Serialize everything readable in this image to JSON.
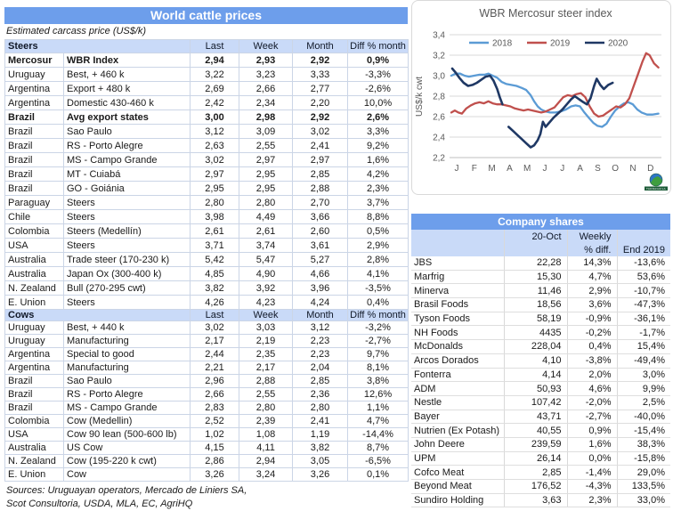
{
  "colors": {
    "header_blue": "#6D9EEB",
    "band_blue": "#C9DAF8",
    "grid": "#D9D9D9",
    "axis_line": "#BFBFBF",
    "axis_text": "#595959",
    "series_2018": "#5B9BD5",
    "series_2019": "#C0504D",
    "series_2020": "#1F3864"
  },
  "main_table": {
    "title": "World cattle prices",
    "subtitle": "Estimated carcass price (US$/k)",
    "columns": [
      "Last",
      "Week",
      "Month",
      "Diff % month"
    ],
    "sections": [
      {
        "label": "Steers",
        "rows": [
          {
            "c": "Mercosur",
            "d": "WBR Index",
            "last": "2,94",
            "week": "2,93",
            "month": "2,92",
            "diff": "0,9%",
            "bold": true
          },
          {
            "c": "Uruguay",
            "d": "Best, + 460 k",
            "last": "3,22",
            "week": "3,23",
            "month": "3,33",
            "diff": "-3,3%"
          },
          {
            "c": "Argentina",
            "d": "Export + 480 k",
            "last": "2,69",
            "week": "2,66",
            "month": "2,77",
            "diff": "-2,6%"
          },
          {
            "c": "Argentina",
            "d": "Domestic 430-460 k",
            "last": "2,42",
            "week": "2,34",
            "month": "2,20",
            "diff": "10,0%"
          },
          {
            "c": "Brazil",
            "d": "Avg export states",
            "last": "3,00",
            "week": "2,98",
            "month": "2,92",
            "diff": "2,6%",
            "bold": true
          },
          {
            "c": "Brazil",
            "d": "Sao Paulo",
            "last": "3,12",
            "week": "3,09",
            "month": "3,02",
            "diff": "3,3%"
          },
          {
            "c": "Brazil",
            "d": "RS - Porto Alegre",
            "last": "2,63",
            "week": "2,55",
            "month": "2,41",
            "diff": "9,2%"
          },
          {
            "c": "Brazil",
            "d": "MS - Campo Grande",
            "last": "3,02",
            "week": "2,97",
            "month": "2,97",
            "diff": "1,6%"
          },
          {
            "c": "Brazil",
            "d": "MT - Cuiabá",
            "last": "2,97",
            "week": "2,95",
            "month": "2,85",
            "diff": "4,2%"
          },
          {
            "c": "Brazil",
            "d": "GO - Goiánia",
            "last": "2,95",
            "week": "2,95",
            "month": "2,88",
            "diff": "2,3%"
          },
          {
            "c": "Paraguay",
            "d": "Steers",
            "last": "2,80",
            "week": "2,80",
            "month": "2,70",
            "diff": "3,7%"
          },
          {
            "c": "Chile",
            "d": "Steers",
            "last": "3,98",
            "week": "4,49",
            "month": "3,66",
            "diff": "8,8%"
          },
          {
            "c": "Colombia",
            "d": "Steers (Medellín)",
            "last": "2,61",
            "week": "2,61",
            "month": "2,60",
            "diff": "0,5%"
          },
          {
            "c": "USA",
            "d": "Steers",
            "last": "3,71",
            "week": "3,74",
            "month": "3,61",
            "diff": "2,9%"
          },
          {
            "c": "Australia",
            "d": "Trade steer (170-230 k)",
            "last": "5,42",
            "week": "5,47",
            "month": "5,27",
            "diff": "2,8%"
          },
          {
            "c": "Australia",
            "d": "Japan Ox (300-400 k)",
            "last": "4,85",
            "week": "4,90",
            "month": "4,66",
            "diff": "4,1%"
          },
          {
            "c": "N. Zealand",
            "d": "Bull (270-295 cwt)",
            "last": "3,82",
            "week": "3,92",
            "month": "3,96",
            "diff": "-3,5%"
          },
          {
            "c": "E. Union",
            "d": "Steers",
            "last": "4,26",
            "week": "4,23",
            "month": "4,24",
            "diff": "0,4%"
          }
        ]
      },
      {
        "label": "Cows",
        "rows": [
          {
            "c": "Uruguay",
            "d": "Best, + 440 k",
            "last": "3,02",
            "week": "3,03",
            "month": "3,12",
            "diff": "-3,2%"
          },
          {
            "c": "Uruguay",
            "d": "Manufacturing",
            "last": "2,17",
            "week": "2,19",
            "month": "2,23",
            "diff": "-2,7%"
          },
          {
            "c": "Argentina",
            "d": "Special to good",
            "last": "2,44",
            "week": "2,35",
            "month": "2,23",
            "diff": "9,7%"
          },
          {
            "c": "Argentina",
            "d": "Manufacturing",
            "last": "2,21",
            "week": "2,17",
            "month": "2,04",
            "diff": "8,1%"
          },
          {
            "c": "Brazil",
            "d": "Sao Paulo",
            "last": "2,96",
            "week": "2,88",
            "month": "2,85",
            "diff": "3,8%"
          },
          {
            "c": "Brazil",
            "d": "RS - Porto Alegre",
            "last": "2,66",
            "week": "2,55",
            "month": "2,36",
            "diff": "12,6%"
          },
          {
            "c": "Brazil",
            "d": "MS - Campo Grande",
            "last": "2,83",
            "week": "2,80",
            "month": "2,80",
            "diff": "1,1%"
          },
          {
            "c": "Colombia",
            "d": "Cow (Medellin)",
            "last": "2,52",
            "week": "2,39",
            "month": "2,41",
            "diff": "4,7%"
          },
          {
            "c": "USA",
            "d": "Cow 90 lean (500-600 lb)",
            "last": "1,02",
            "week": "1,08",
            "month": "1,19",
            "diff": "-14,4%"
          },
          {
            "c": "Australia",
            "d": "US Cow",
            "last": "4,15",
            "week": "4,11",
            "month": "3,82",
            "diff": "8,7%"
          },
          {
            "c": "N. Zealand",
            "d": "Cow (195-220 k cwt)",
            "last": "2,86",
            "week": "2,94",
            "month": "3,05",
            "diff": "-6,5%"
          },
          {
            "c": "E. Union",
            "d": "Cow",
            "last": "3,26",
            "week": "3,24",
            "month": "3,26",
            "diff": "0,1%"
          }
        ]
      }
    ],
    "sources": [
      "Sources: Uruguayan operators, Mercado de Liniers SA,",
      "Scot Consultoria, USDA, MLA, EC, AgriHQ"
    ]
  },
  "chart_data": {
    "type": "line",
    "title": "WBR Mercosur steer index",
    "ylabel": "US$/k cwt",
    "ylim": [
      2.2,
      3.4
    ],
    "yticks": [
      "2,2",
      "2,4",
      "2,6",
      "2,8",
      "3,0",
      "3,2",
      "3,4"
    ],
    "x_labels": [
      "J",
      "F",
      "M",
      "A",
      "M",
      "J",
      "J",
      "A",
      "S",
      "O",
      "N",
      "D"
    ],
    "legend_position": "top",
    "grid": true,
    "logo": "tardaguila-globe-logo",
    "series": [
      {
        "name": "2018",
        "color": "#5B9BD5",
        "segments": [
          [
            [
              0.1,
              3.0
            ],
            [
              0.35,
              3.02
            ],
            [
              0.6,
              3.02
            ],
            [
              0.85,
              3.0
            ],
            [
              1.1,
              2.99
            ],
            [
              1.4,
              3.0
            ],
            [
              1.7,
              3.01
            ],
            [
              2.0,
              3.01
            ],
            [
              2.2,
              3.02
            ],
            [
              2.45,
              3.0
            ],
            [
              2.7,
              2.98
            ],
            [
              2.95,
              2.94
            ],
            [
              3.2,
              2.92
            ],
            [
              3.5,
              2.91
            ],
            [
              3.8,
              2.9
            ],
            [
              4.1,
              2.88
            ],
            [
              4.35,
              2.86
            ],
            [
              4.6,
              2.81
            ],
            [
              4.8,
              2.75
            ],
            [
              5.0,
              2.7
            ],
            [
              5.2,
              2.67
            ],
            [
              5.45,
              2.65
            ],
            [
              5.7,
              2.64
            ],
            [
              6.0,
              2.64
            ],
            [
              6.3,
              2.65
            ],
            [
              6.6,
              2.67
            ],
            [
              6.9,
              2.7
            ],
            [
              7.15,
              2.71
            ],
            [
              7.4,
              2.7
            ],
            [
              7.65,
              2.64
            ],
            [
              7.9,
              2.59
            ],
            [
              8.15,
              2.54
            ],
            [
              8.4,
              2.51
            ],
            [
              8.65,
              2.5
            ],
            [
              8.9,
              2.53
            ],
            [
              9.15,
              2.6
            ],
            [
              9.4,
              2.66
            ],
            [
              9.65,
              2.7
            ],
            [
              9.9,
              2.73
            ],
            [
              10.15,
              2.74
            ],
            [
              10.4,
              2.72
            ],
            [
              10.65,
              2.67
            ],
            [
              10.9,
              2.64
            ],
            [
              11.2,
              2.62
            ],
            [
              11.5,
              2.62
            ],
            [
              11.85,
              2.63
            ]
          ]
        ]
      },
      {
        "name": "2019",
        "color": "#C0504D",
        "segments": [
          [
            [
              0.1,
              2.64
            ],
            [
              0.3,
              2.66
            ],
            [
              0.5,
              2.64
            ],
            [
              0.7,
              2.63
            ],
            [
              0.95,
              2.68
            ],
            [
              1.2,
              2.71
            ],
            [
              1.45,
              2.73
            ],
            [
              1.7,
              2.74
            ],
            [
              1.95,
              2.73
            ],
            [
              2.2,
              2.75
            ],
            [
              2.45,
              2.73
            ],
            [
              2.7,
              2.72
            ],
            [
              2.95,
              2.72
            ],
            [
              3.2,
              2.71
            ],
            [
              3.45,
              2.7
            ],
            [
              3.7,
              2.68
            ],
            [
              3.95,
              2.67
            ],
            [
              4.2,
              2.66
            ],
            [
              4.45,
              2.67
            ],
            [
              4.7,
              2.66
            ],
            [
              4.95,
              2.65
            ],
            [
              5.2,
              2.64
            ],
            [
              5.45,
              2.65
            ],
            [
              5.7,
              2.67
            ],
            [
              5.95,
              2.69
            ],
            [
              6.2,
              2.74
            ],
            [
              6.45,
              2.79
            ],
            [
              6.7,
              2.81
            ],
            [
              6.95,
              2.8
            ],
            [
              7.2,
              2.82
            ],
            [
              7.45,
              2.83
            ],
            [
              7.7,
              2.79
            ],
            [
              7.95,
              2.7
            ],
            [
              8.2,
              2.63
            ],
            [
              8.45,
              2.6
            ],
            [
              8.7,
              2.61
            ],
            [
              8.95,
              2.64
            ],
            [
              9.2,
              2.67
            ],
            [
              9.45,
              2.7
            ],
            [
              9.7,
              2.69
            ],
            [
              9.95,
              2.72
            ],
            [
              10.2,
              2.78
            ],
            [
              10.45,
              2.9
            ],
            [
              10.7,
              3.02
            ],
            [
              10.95,
              3.14
            ],
            [
              11.15,
              3.22
            ],
            [
              11.35,
              3.2
            ],
            [
              11.6,
              3.12
            ],
            [
              11.85,
              3.08
            ]
          ]
        ]
      },
      {
        "name": "2020",
        "color": "#1F3864",
        "segments": [
          [
            [
              0.15,
              3.07
            ],
            [
              0.35,
              3.03
            ],
            [
              0.55,
              2.98
            ],
            [
              0.8,
              2.93
            ],
            [
              1.05,
              2.9
            ],
            [
              1.3,
              2.91
            ],
            [
              1.55,
              2.93
            ],
            [
              1.8,
              2.96
            ],
            [
              2.05,
              2.99
            ],
            [
              2.3,
              3.0
            ],
            [
              2.5,
              2.95
            ],
            [
              2.7,
              2.87
            ],
            [
              2.85,
              2.79
            ],
            [
              3.0,
              2.72
            ]
          ],
          [
            [
              3.35,
              2.5
            ],
            [
              3.6,
              2.46
            ],
            [
              3.85,
              2.42
            ],
            [
              4.1,
              2.38
            ],
            [
              4.35,
              2.34
            ],
            [
              4.6,
              2.3
            ],
            [
              4.8,
              2.32
            ],
            [
              5.0,
              2.37
            ],
            [
              5.15,
              2.43
            ],
            [
              5.3,
              2.55
            ],
            [
              5.45,
              2.5
            ],
            [
              5.65,
              2.54
            ],
            [
              5.9,
              2.59
            ],
            [
              6.15,
              2.63
            ],
            [
              6.4,
              2.67
            ],
            [
              6.65,
              2.72
            ],
            [
              6.9,
              2.77
            ],
            [
              7.1,
              2.8
            ],
            [
              7.35,
              2.77
            ],
            [
              7.6,
              2.74
            ],
            [
              7.8,
              2.72
            ],
            [
              8.0,
              2.78
            ],
            [
              8.2,
              2.9
            ],
            [
              8.35,
              2.97
            ],
            [
              8.55,
              2.91
            ],
            [
              8.75,
              2.87
            ],
            [
              9.0,
              2.91
            ],
            [
              9.25,
              2.93
            ]
          ]
        ]
      }
    ]
  },
  "company_table": {
    "title": "Company shares",
    "header": {
      "line1": [
        "",
        "20-Oct",
        "Weekly",
        ""
      ],
      "line2": [
        "",
        "",
        "% diff.",
        "End 2019"
      ]
    },
    "rows": [
      [
        "JBS",
        "22,28",
        "14,3%",
        "-13,6%"
      ],
      [
        "Marfrig",
        "15,30",
        "4,7%",
        "53,6%"
      ],
      [
        "Minerva",
        "11,46",
        "2,9%",
        "-10,7%"
      ],
      [
        "Brasil Foods",
        "18,56",
        "3,6%",
        "-47,3%"
      ],
      [
        "Tyson Foods",
        "58,19",
        "-0,9%",
        "-36,1%"
      ],
      [
        "NH Foods",
        "4435",
        "-0,2%",
        "-1,7%"
      ],
      [
        "McDonalds",
        "228,04",
        "0,4%",
        "15,4%"
      ],
      [
        "Arcos Dorados",
        "4,10",
        "-3,8%",
        "-49,4%"
      ],
      [
        "Fonterra",
        "4,14",
        "2,0%",
        "3,0%"
      ],
      [
        "ADM",
        "50,93",
        "4,6%",
        "9,9%"
      ],
      [
        "Nestle",
        "107,42",
        "-2,0%",
        "2,5%"
      ],
      [
        "Bayer",
        "43,71",
        "-2,7%",
        "-40,0%"
      ],
      [
        "Nutrien (Ex Potash)",
        "40,55",
        "0,9%",
        "-15,4%"
      ],
      [
        "John Deere",
        "239,59",
        "1,6%",
        "38,3%"
      ],
      [
        "UPM",
        "26,14",
        "0,0%",
        "-15,8%"
      ],
      [
        "Cofco Meat",
        "2,85",
        "-1,4%",
        "29,0%"
      ],
      [
        "Beyond Meat",
        "176,52",
        "-4,3%",
        "133,5%"
      ],
      [
        "Sundiro Holding",
        "3,63",
        "2,3%",
        "33,0%"
      ]
    ]
  }
}
